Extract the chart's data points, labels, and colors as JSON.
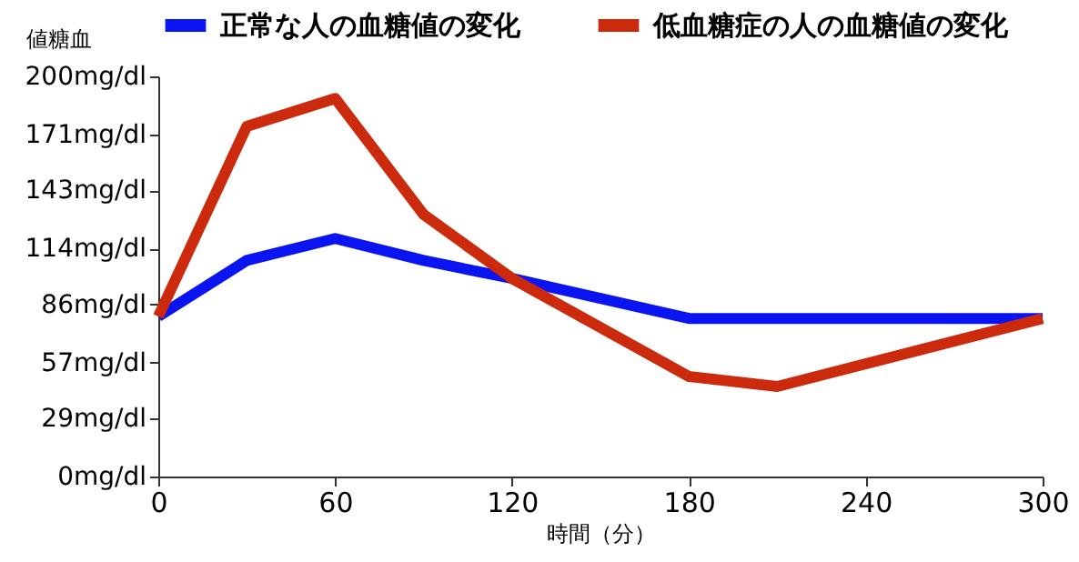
{
  "chart_data": {
    "type": "line",
    "xlabel": "時間（分）",
    "ylabel": "値糖血",
    "series": [
      {
        "name": "正常な人の血糖値の変化",
        "color": "#0a14f0",
        "x": [
          0,
          30,
          60,
          90,
          120,
          180,
          270,
          300
        ],
        "values": [
          80,
          108,
          119,
          108,
          99,
          79,
          79,
          79
        ]
      },
      {
        "name": "低血糖症の人の血糖値の変化",
        "color": "#cc2a0c",
        "x": [
          0,
          30,
          60,
          90,
          120,
          180,
          210,
          300
        ],
        "values": [
          80,
          175,
          189,
          131,
          99,
          50,
          45,
          79
        ]
      }
    ],
    "xlim": [
      0,
      300
    ],
    "xticks": [
      0,
      60,
      120,
      180,
      240,
      300
    ],
    "ylim": [
      0,
      200
    ],
    "yticks": [
      {
        "value": 0,
        "label": "0mg/dl"
      },
      {
        "value": 29,
        "label": "29mg/dl"
      },
      {
        "value": 57,
        "label": "57mg/dl"
      },
      {
        "value": 86,
        "label": "86mg/dl"
      },
      {
        "value": 114,
        "label": "114mg/dl"
      },
      {
        "value": 143,
        "label": "143mg/dl"
      },
      {
        "value": 171,
        "label": "171mg/dl"
      },
      {
        "value": 200,
        "label": "200mg/dl"
      }
    ],
    "grid": false,
    "legend": "top",
    "line_style": "solid",
    "marker": "none"
  }
}
